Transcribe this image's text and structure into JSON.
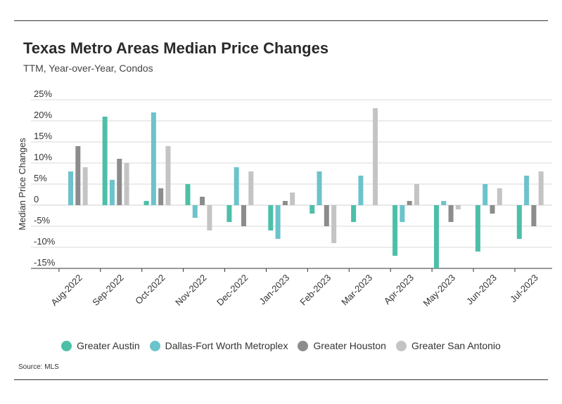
{
  "title": "Texas Metro Areas Median Price Changes",
  "subtitle": "TTM, Year-over-Year, Condos",
  "source": "Source: MLS",
  "colors": {
    "Greater Austin": "#4dbfa8",
    "Dallas-Fort Worth Metroplex": "#6cc3cc",
    "Greater Houston": "#8c8c8c",
    "Greater San Antonio": "#c4c4c4"
  },
  "chart_data": {
    "type": "bar",
    "ylabel": "Median Price Changes",
    "ylim": [
      -15,
      25
    ],
    "yticks": [
      25,
      20,
      15,
      10,
      5,
      0,
      -5,
      -10,
      -15
    ],
    "ytick_labels": [
      "25%",
      "20%",
      "15%",
      "10%",
      "5%",
      "0",
      "-5%",
      "-10%",
      "-15%"
    ],
    "grid": true,
    "legend_position": "bottom",
    "categories": [
      "Aug-2022",
      "Sep-2022",
      "Oct-2022",
      "Nov-2022",
      "Dec-2022",
      "Jan-2023",
      "Feb-2023",
      "Mar-2023",
      "Apr-2023",
      "May-2023",
      "Jun-2023",
      "Jul-2023"
    ],
    "series": [
      {
        "name": "Greater Austin",
        "values": [
          null,
          21,
          1,
          5,
          -4,
          -6,
          -2,
          -4,
          -12,
          -15,
          -11,
          -8
        ]
      },
      {
        "name": "Dallas-Fort Worth Metroplex",
        "values": [
          8,
          6,
          22,
          -3,
          9,
          -8,
          8,
          7,
          -4,
          1,
          5,
          7
        ]
      },
      {
        "name": "Greater Houston",
        "values": [
          14,
          11,
          4,
          2,
          -5,
          1,
          -5,
          null,
          1,
          -4,
          -2,
          -5
        ]
      },
      {
        "name": "Greater San Antonio",
        "values": [
          9,
          10,
          14,
          -6,
          8,
          3,
          -9,
          23,
          5,
          -1,
          4,
          8
        ]
      }
    ]
  }
}
